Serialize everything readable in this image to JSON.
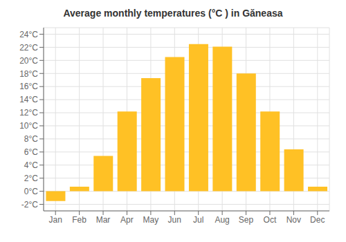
{
  "chart_data": {
    "type": "bar",
    "title": "Average monthly temperatures (°C ) in Găneasa",
    "categories": [
      "Jan",
      "Feb",
      "Mar",
      "Apr",
      "May",
      "Jun",
      "Jul",
      "Aug",
      "Sep",
      "Oct",
      "Nov",
      "Dec"
    ],
    "values": [
      -1.5,
      0.7,
      5.4,
      12.2,
      17.3,
      20.5,
      22.5,
      22.1,
      18.0,
      12.2,
      6.4,
      0.7
    ],
    "color": "#FFC125",
    "ylim": [
      -3,
      25
    ],
    "yticks": [
      {
        "value": -2,
        "label": "-2°C"
      },
      {
        "value": 0,
        "label": "0°C"
      },
      {
        "value": 2,
        "label": "2°C"
      },
      {
        "value": 4,
        "label": "4°C"
      },
      {
        "value": 6,
        "label": "6°C"
      },
      {
        "value": 8,
        "label": "8°C"
      },
      {
        "value": 10,
        "label": "10°C"
      },
      {
        "value": 12,
        "label": "12°C"
      },
      {
        "value": 14,
        "label": "14°C"
      },
      {
        "value": 16,
        "label": "16°C"
      },
      {
        "value": 18,
        "label": "18°C"
      },
      {
        "value": 20,
        "label": "20°C"
      },
      {
        "value": 22,
        "label": "22°C"
      },
      {
        "value": 24,
        "label": "24°C"
      }
    ],
    "grid": true
  }
}
